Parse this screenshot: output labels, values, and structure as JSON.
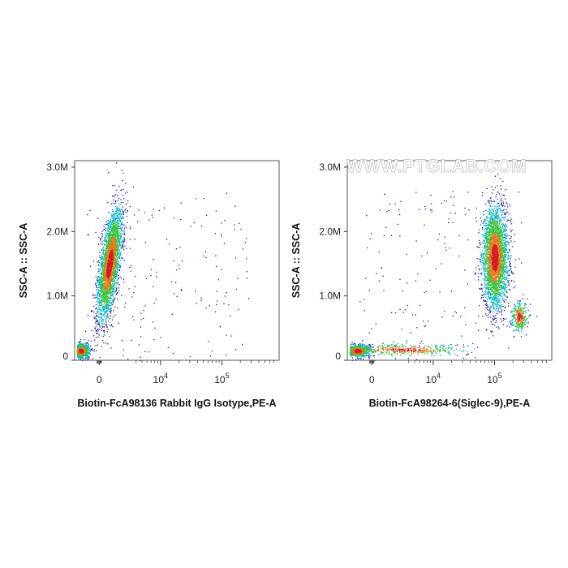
{
  "watermark": "WWW.PTGLAB.COM",
  "colors": {
    "density_low": "#1a1aa0",
    "density_mid": "#00b4c8",
    "density_high_mid": "#3cc43c",
    "density_high": "#e8781e",
    "density_peak": "#d21e1e",
    "axis": "#333333"
  },
  "chart_data": [
    {
      "type": "scatter",
      "subtype": "flow-cytometry-density-dot-plot",
      "xlabel": "Biotin-FcA98136 Rabbit IgG Isotype,PE-A",
      "ylabel": "SSC-A :: SSC-A",
      "x_scale": "biexponential",
      "x_ticks": [
        {
          "pos": 0,
          "base": "0",
          "exp": ""
        },
        {
          "pos": 10000,
          "base": "10",
          "exp": "4"
        },
        {
          "pos": 100000,
          "base": "10",
          "exp": "5"
        }
      ],
      "y_ticks": [
        {
          "value": 0,
          "label": "0"
        },
        {
          "value": 1000000,
          "label": "1.0M"
        },
        {
          "value": 2000000,
          "label": "2.0M"
        },
        {
          "value": 3000000,
          "label": "3.0M"
        }
      ],
      "ylim": [
        0,
        3100000
      ],
      "populations": [
        {
          "name": "main",
          "x_center_display": 0.17,
          "ssc_center": 1500000,
          "x_spread": 0.022,
          "ssc_spread": 420000,
          "count": 3200,
          "tilt": 0.06
        },
        {
          "name": "low-ssc",
          "x_center_display": 0.03,
          "ssc_center": 150000,
          "x_spread": 0.02,
          "ssc_spread": 55000,
          "count": 900,
          "tilt": 0
        }
      ]
    },
    {
      "type": "scatter",
      "subtype": "flow-cytometry-density-dot-plot",
      "xlabel": "Biotin-FcA98264-6(Siglec-9),PE-A",
      "ylabel": "SSC-A :: SSC-A",
      "x_scale": "biexponential",
      "x_ticks": [
        {
          "pos": 0,
          "base": "0",
          "exp": ""
        },
        {
          "pos": 10000,
          "base": "10",
          "exp": "4"
        },
        {
          "pos": 100000,
          "base": "10",
          "exp": "5"
        }
      ],
      "y_ticks": [
        {
          "value": 0,
          "label": "0"
        },
        {
          "value": 1000000,
          "label": "1.0M"
        },
        {
          "value": 2000000,
          "label": "2.0M"
        },
        {
          "value": 3000000,
          "label": "3.0M"
        }
      ],
      "ylim": [
        0,
        3100000
      ],
      "populations": [
        {
          "name": "positive-high-ssc",
          "x_center_display": 0.72,
          "ssc_center": 1600000,
          "x_spread": 0.03,
          "ssc_spread": 380000,
          "count": 3200,
          "tilt": 0
        },
        {
          "name": "positive-mid-ssc",
          "x_center_display": 0.84,
          "ssc_center": 680000,
          "x_spread": 0.02,
          "ssc_spread": 110000,
          "count": 350,
          "tilt": 0
        },
        {
          "name": "low-ssc-negative",
          "x_center_display": 0.05,
          "ssc_center": 150000,
          "x_spread": 0.03,
          "ssc_spread": 50000,
          "count": 700,
          "tilt": 0
        },
        {
          "name": "low-ssc-tail",
          "x_center_display": 0.28,
          "ssc_center": 170000,
          "x_spread": 0.15,
          "ssc_spread": 45000,
          "count": 450,
          "tilt": 0
        }
      ]
    }
  ]
}
